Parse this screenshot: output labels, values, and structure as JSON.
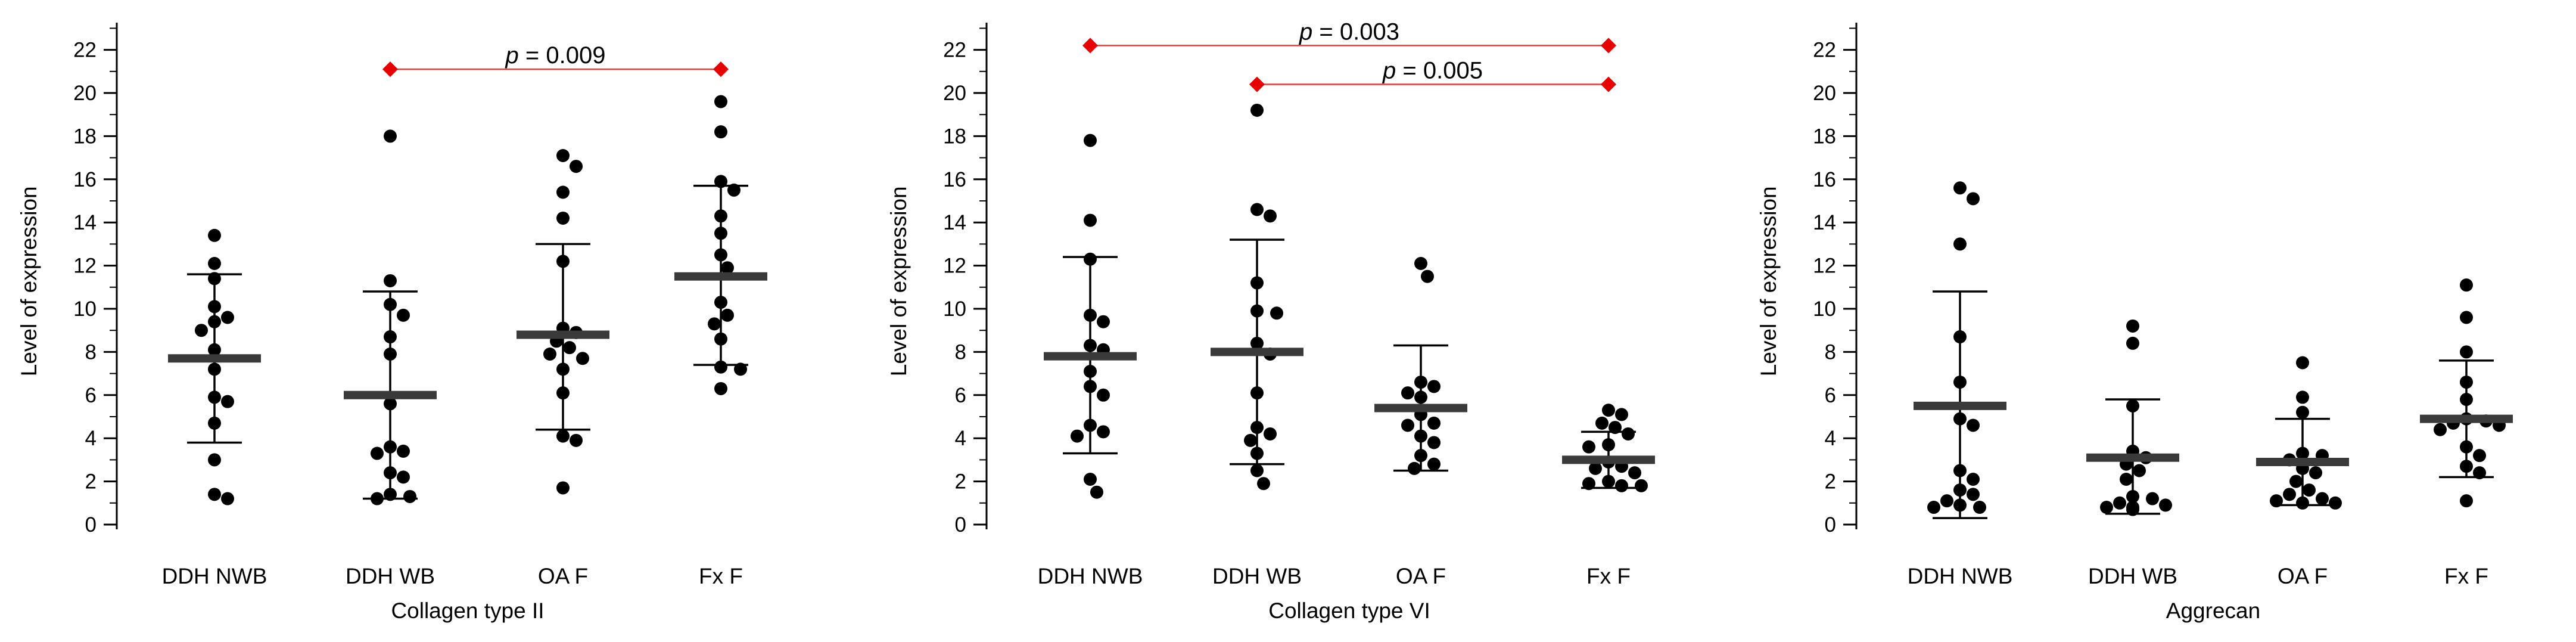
{
  "chart_data": [
    {
      "type": "scatter",
      "title": "",
      "xlabel": "Collagen type II",
      "ylabel": "Level of expression",
      "ylim": [
        0,
        22
      ],
      "yticks": [
        0,
        2,
        4,
        6,
        8,
        10,
        12,
        14,
        16,
        18,
        20,
        22
      ],
      "ytick_labels": [
        "0",
        "2",
        "4",
        "6",
        "8",
        "10",
        "12",
        "14",
        "16",
        "18",
        "20",
        "22"
      ],
      "categories": [
        "DDH NWB",
        "DDH WB",
        "OA F",
        "Fx F"
      ],
      "groups": [
        {
          "name": "DDH NWB",
          "mean": 7.7,
          "sd_low": 3.8,
          "sd_high": 11.6,
          "values": [
            13.4,
            12.1,
            11.4,
            10.1,
            9.6,
            9.4,
            9.0,
            8.1,
            7.2,
            5.9,
            5.7,
            4.7,
            3.0,
            1.4,
            1.2
          ]
        },
        {
          "name": "DDH WB",
          "mean": 6.0,
          "sd_low": 1.2,
          "sd_high": 10.8,
          "values": [
            18.0,
            11.3,
            10.2,
            9.7,
            8.7,
            7.9,
            5.6,
            3.6,
            3.3,
            3.4,
            2.4,
            2.2,
            1.4,
            1.3,
            1.2
          ]
        },
        {
          "name": "OA F",
          "mean": 8.8,
          "sd_low": 4.4,
          "sd_high": 13.0,
          "values": [
            17.1,
            16.6,
            15.4,
            14.2,
            12.2,
            9.1,
            8.9,
            8.5,
            8.2,
            7.9,
            7.7,
            7.2,
            6.1,
            4.1,
            3.9,
            1.7
          ]
        },
        {
          "name": "Fx F",
          "mean": 11.5,
          "sd_low": 7.4,
          "sd_high": 15.7,
          "values": [
            19.6,
            18.2,
            15.9,
            15.5,
            14.3,
            13.5,
            12.5,
            11.9,
            10.3,
            9.7,
            9.3,
            8.6,
            7.3,
            7.2,
            6.3
          ]
        }
      ],
      "significance": [
        {
          "from": "DDH WB",
          "to": "Fx F",
          "label": "p = 0.009",
          "p_symbol": "p",
          "p_value": "= 0.009",
          "level": 21.1
        }
      ]
    },
    {
      "type": "scatter",
      "title": "",
      "xlabel": "Collagen type VI",
      "ylabel": "Level of expression",
      "ylim": [
        0,
        22
      ],
      "yticks": [
        0,
        2,
        4,
        6,
        8,
        10,
        12,
        14,
        16,
        18,
        20,
        22
      ],
      "ytick_labels": [
        "0",
        "2",
        "4",
        "6",
        "8",
        "10",
        "12",
        "14",
        "16",
        "18",
        "20",
        "22"
      ],
      "categories": [
        "DDH NWB",
        "DDH WB",
        "OA F",
        "Fx F"
      ],
      "groups": [
        {
          "name": "DDH NWB",
          "mean": 7.8,
          "sd_low": 3.3,
          "sd_high": 12.4,
          "values": [
            17.8,
            14.1,
            12.3,
            9.7,
            9.4,
            8.3,
            8.1,
            7.1,
            6.4,
            6.0,
            4.6,
            4.3,
            4.1,
            2.1,
            1.5
          ]
        },
        {
          "name": "DDH WB",
          "mean": 8.0,
          "sd_low": 2.8,
          "sd_high": 13.2,
          "values": [
            19.2,
            14.6,
            14.3,
            11.2,
            9.9,
            9.8,
            8.4,
            7.9,
            6.1,
            4.5,
            4.2,
            3.9,
            3.3,
            2.5,
            1.9
          ]
        },
        {
          "name": "OA F",
          "mean": 5.4,
          "sd_low": 2.5,
          "sd_high": 8.3,
          "values": [
            12.1,
            11.5,
            6.6,
            6.4,
            6.1,
            5.9,
            5.1,
            4.7,
            4.6,
            4.1,
            3.8,
            3.2,
            2.8,
            2.6
          ]
        },
        {
          "name": "Fx F",
          "mean": 3.0,
          "sd_low": 1.7,
          "sd_high": 4.3,
          "values": [
            5.3,
            5.1,
            4.7,
            4.5,
            4.2,
            3.7,
            3.6,
            2.9,
            2.7,
            2.6,
            2.4,
            2.0,
            1.9,
            1.8,
            1.8
          ]
        }
      ],
      "significance": [
        {
          "from": "DDH NWB",
          "to": "Fx F",
          "label": "p = 0.003",
          "p_symbol": "p",
          "p_value": "= 0.003",
          "level": 22.2
        },
        {
          "from": "DDH WB",
          "to": "Fx F",
          "label": "p = 0.005",
          "p_symbol": "p",
          "p_value": "= 0.005",
          "level": 20.4
        }
      ]
    },
    {
      "type": "scatter",
      "title": "",
      "xlabel": "Aggrecan",
      "ylabel": "Level of expression",
      "ylim": [
        0,
        22
      ],
      "yticks": [
        0,
        2,
        4,
        6,
        8,
        10,
        12,
        14,
        16,
        18,
        20,
        22
      ],
      "ytick_labels": [
        "0",
        "2",
        "4",
        "6",
        "8",
        "10",
        "12",
        "14",
        "16",
        "18",
        "20",
        "22"
      ],
      "categories": [
        "DDH NWB",
        "DDH WB",
        "OA F",
        "Fx F"
      ],
      "groups": [
        {
          "name": "DDH NWB",
          "mean": 5.5,
          "sd_low": 0.3,
          "sd_high": 10.8,
          "values": [
            15.6,
            15.1,
            13.0,
            8.7,
            6.6,
            4.9,
            4.6,
            2.5,
            2.1,
            1.6,
            1.4,
            1.1,
            0.9,
            0.8,
            0.8
          ]
        },
        {
          "name": "DDH WB",
          "mean": 3.1,
          "sd_low": 0.5,
          "sd_high": 5.8,
          "values": [
            9.2,
            8.4,
            5.5,
            3.4,
            3.1,
            2.8,
            2.5,
            2.1,
            1.3,
            1.2,
            1.0,
            0.9,
            0.8,
            0.8,
            0.7
          ]
        },
        {
          "name": "OA F",
          "mean": 2.9,
          "sd_low": 0.9,
          "sd_high": 4.9,
          "values": [
            7.5,
            5.9,
            5.2,
            3.3,
            3.2,
            3.0,
            2.6,
            2.4,
            2.0,
            1.6,
            1.4,
            1.2,
            1.1,
            1.0,
            1.0
          ]
        },
        {
          "name": "Fx F",
          "mean": 4.9,
          "sd_low": 2.2,
          "sd_high": 7.6,
          "values": [
            11.1,
            9.6,
            8.0,
            6.6,
            5.8,
            4.9,
            4.8,
            4.7,
            4.6,
            4.4,
            3.6,
            3.2,
            2.7,
            2.4,
            1.1
          ]
        }
      ],
      "significance": []
    }
  ],
  "colors": {
    "significance_line": "#e63c3c",
    "significance_marker": "#e60000",
    "mean_bar": "#3a3a3a",
    "points": "#000000"
  }
}
